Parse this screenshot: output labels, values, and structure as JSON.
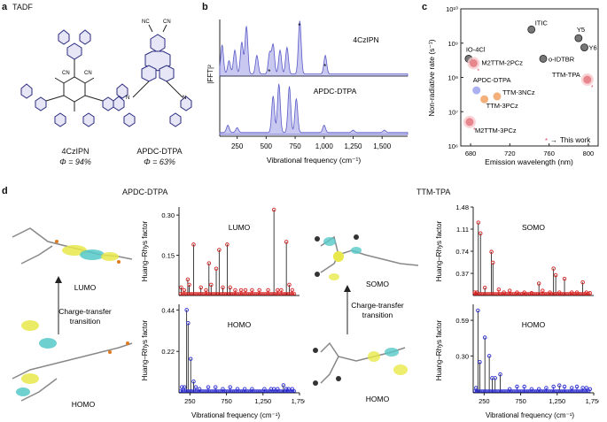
{
  "panels": {
    "a": {
      "label": "a",
      "header": "TADF",
      "molecules": [
        {
          "name": "4CzIPN",
          "phi": "Φ = 94%"
        },
        {
          "name": "APDC-DTPA",
          "phi": "Φ = 63%"
        }
      ]
    },
    "b": {
      "label": "b",
      "ylabel": "|FFT|²",
      "xlabel": "Vibrational frequency (cm⁻¹)",
      "xticks": [
        "250",
        "500",
        "750",
        "1,000",
        "1,250",
        "1,500"
      ],
      "trace_top": "4CzIPN",
      "trace_bottom": "APDC-DTPA",
      "star": "*"
    },
    "c": {
      "label": "c",
      "ylabel": "Non-radiative rate (s⁻¹)",
      "xlabel": "Emission wavelength (nm)",
      "yticks": [
        "10¹⁰",
        "10⁹",
        "10⁸",
        "10⁷",
        "10⁶"
      ],
      "xticks": [
        "680",
        "720",
        "760",
        "800"
      ],
      "legend": "This work",
      "legend_star": "*",
      "legend_arrow": "→"
    },
    "d": {
      "label": "d",
      "left_title": "APDC-DTPA",
      "right_title": "TTM-TPA",
      "left_top_orbital": "LUMO",
      "left_bottom_orbital": "HOMO",
      "left_transition": "Charge-transfer\ntransition",
      "right_top_orbital": "SOMO",
      "right_bottom_orbital": "HOMO",
      "right_transition": "Charge-transfer\ntransition",
      "plot_ylabel": "Huang–Rhys factor",
      "plot_xlabel": "Vibrational frequency (cm⁻¹)",
      "plot_xticks": [
        "250",
        "750",
        "1,250",
        "1,750"
      ],
      "plots": {
        "apdc_lumo": {
          "label": "LUMO",
          "yticks": [
            "0.15",
            "0.30"
          ]
        },
        "apdc_homo": {
          "label": "HOMO",
          "yticks": [
            "0.22",
            "0.44"
          ]
        },
        "ttm_somo": {
          "label": "SOMO",
          "yticks": [
            "0.37",
            "0.74",
            "1.11",
            "1.48"
          ]
        },
        "ttm_homo": {
          "label": "HOMO",
          "yticks": [
            "0.30",
            "0.59"
          ]
        }
      }
    }
  },
  "colors": {
    "fft_fill": "#c8c8f0",
    "fft_line": "#5a5ac8",
    "lumo_red": "#d42020",
    "homo_blue": "#2b2bd0",
    "highlight_pink": "#e8868e",
    "grey_point": "#777777",
    "orange_point": "#f4b07a",
    "lavender_point": "#aab0f0"
  },
  "chart_data": [
    {
      "type": "scatter",
      "id": "panel-c",
      "xlabel": "Emission wavelength (nm)",
      "ylabel": "Non-radiative rate (s⁻¹)",
      "xlim": [
        670,
        810
      ],
      "ylim_log10": [
        6,
        10
      ],
      "xticks": [
        680,
        720,
        760,
        800
      ],
      "points": [
        {
          "label": "ITIC",
          "x": 742,
          "y": 2500000000.0,
          "kind": "grey",
          "star": false
        },
        {
          "label": "IO-4Cl",
          "x": 678,
          "y": 350000000.0,
          "kind": "grey",
          "star": false
        },
        {
          "label": "o-IDTBR",
          "x": 754,
          "y": 350000000.0,
          "kind": "grey",
          "star": false
        },
        {
          "label": "Y5",
          "x": 790,
          "y": 1400000000.0,
          "kind": "grey",
          "star": false
        },
        {
          "label": "Y6",
          "x": 796,
          "y": 750000000.0,
          "kind": "grey",
          "star": false
        },
        {
          "label": "M2TTM-2PCz",
          "x": 683,
          "y": 260000000.0,
          "kind": "pink",
          "star": true
        },
        {
          "label": "TTM-TPA",
          "x": 799,
          "y": 86000000.0,
          "kind": "pink",
          "star": true
        },
        {
          "label": "APDC-DTPA",
          "x": 686,
          "y": 42000000.0,
          "kind": "lavender",
          "star": false
        },
        {
          "label": "TTM-3NCz",
          "x": 707,
          "y": 28000000.0,
          "kind": "orange",
          "star": false
        },
        {
          "label": "TTM-3PCz",
          "x": 694,
          "y": 23000000.0,
          "kind": "orange",
          "star": false
        },
        {
          "label": "M2TTM-3PCz",
          "x": 679,
          "y": 5000000.0,
          "kind": "pink",
          "star": true
        }
      ]
    },
    {
      "type": "area",
      "id": "panel-b",
      "xlabel": "Vibrational frequency (cm⁻¹)",
      "ylabel": "|FFT|²",
      "xlim": [
        100,
        1720
      ],
      "series": [
        {
          "name": "4CzIPN",
          "peaks": [
            [
              120,
              0.55
            ],
            [
              180,
              0.25
            ],
            [
              230,
              0.45
            ],
            [
              290,
              0.6
            ],
            [
              330,
              0.9
            ],
            [
              420,
              0.35
            ],
            [
              530,
              0.4
            ],
            [
              560,
              0.55
            ],
            [
              620,
              0.45
            ],
            [
              680,
              0.5
            ],
            [
              790,
              1.0
            ],
            [
              1010,
              0.35
            ]
          ]
        },
        {
          "name": "APDC-DTPA",
          "peaks": [
            [
              170,
              0.15
            ],
            [
              250,
              0.1
            ],
            [
              560,
              0.75
            ],
            [
              610,
              1.0
            ],
            [
              700,
              0.95
            ],
            [
              760,
              0.7
            ],
            [
              1000,
              0.15
            ],
            [
              1250,
              0.05
            ],
            [
              1520,
              0.05
            ]
          ]
        }
      ]
    },
    {
      "type": "scatter",
      "id": "d-apdc-lumo",
      "name": "LUMO",
      "ylabel": "Huang–Rhys factor",
      "xlabel": "Vibrational frequency (cm⁻¹)",
      "xlim": [
        100,
        1750
      ],
      "ylim": [
        0,
        0.33
      ],
      "sticks": [
        [
          130,
          0.03
        ],
        [
          170,
          0.02
        ],
        [
          220,
          0.06
        ],
        [
          240,
          0.04
        ],
        [
          300,
          0.19
        ],
        [
          400,
          0.03
        ],
        [
          470,
          0.02
        ],
        [
          510,
          0.12
        ],
        [
          540,
          0.04
        ],
        [
          610,
          0.1
        ],
        [
          650,
          0.17
        ],
        [
          700,
          0.03
        ],
        [
          760,
          0.19
        ],
        [
          800,
          0.03
        ],
        [
          870,
          0.02
        ],
        [
          950,
          0.02
        ],
        [
          1010,
          0.02
        ],
        [
          1100,
          0.02
        ],
        [
          1200,
          0.02
        ],
        [
          1320,
          0.02
        ],
        [
          1400,
          0.32
        ],
        [
          1450,
          0.02
        ],
        [
          1500,
          0.02
        ],
        [
          1570,
          0.2
        ],
        [
          1610,
          0.04
        ],
        [
          1650,
          0.02
        ]
      ]
    },
    {
      "type": "scatter",
      "id": "d-apdc-homo",
      "name": "HOMO",
      "ylabel": "Huang–Rhys factor",
      "xlabel": "Vibrational frequency (cm⁻¹)",
      "xlim": [
        100,
        1750
      ],
      "ylim": [
        0,
        0.47
      ],
      "sticks": [
        [
          140,
          0.03
        ],
        [
          175,
          0.03
        ],
        [
          205,
          0.44
        ],
        [
          225,
          0.37
        ],
        [
          260,
          0.18
        ],
        [
          300,
          0.06
        ],
        [
          330,
          0.03
        ],
        [
          380,
          0.02
        ],
        [
          500,
          0.03
        ],
        [
          600,
          0.03
        ],
        [
          700,
          0.02
        ],
        [
          800,
          0.03
        ],
        [
          900,
          0.02
        ],
        [
          1000,
          0.02
        ],
        [
          1100,
          0.02
        ],
        [
          1270,
          0.02
        ],
        [
          1360,
          0.02
        ],
        [
          1400,
          0.02
        ],
        [
          1450,
          0.02
        ],
        [
          1530,
          0.04
        ],
        [
          1570,
          0.02
        ],
        [
          1600,
          0.02
        ],
        [
          1650,
          0.02
        ]
      ]
    },
    {
      "type": "scatter",
      "id": "d-ttm-somo",
      "name": "SOMO",
      "ylabel": "Huang–Rhys factor",
      "xlabel": "Vibrational frequency (cm⁻¹)",
      "xlim": [
        100,
        1750
      ],
      "ylim": [
        0,
        1.48
      ],
      "sticks": [
        [
          120,
          0.05
        ],
        [
          150,
          0.05
        ],
        [
          170,
          1.22
        ],
        [
          200,
          1.04
        ],
        [
          260,
          0.13
        ],
        [
          350,
          0.73
        ],
        [
          370,
          0.55
        ],
        [
          450,
          0.1
        ],
        [
          520,
          0.05
        ],
        [
          600,
          0.08
        ],
        [
          700,
          0.05
        ],
        [
          800,
          0.05
        ],
        [
          900,
          0.04
        ],
        [
          1000,
          0.2
        ],
        [
          1050,
          0.08
        ],
        [
          1150,
          0.05
        ],
        [
          1200,
          0.45
        ],
        [
          1230,
          0.34
        ],
        [
          1280,
          0.05
        ],
        [
          1350,
          0.28
        ],
        [
          1450,
          0.05
        ],
        [
          1520,
          0.05
        ],
        [
          1600,
          0.22
        ],
        [
          1650,
          0.05
        ],
        [
          1700,
          0.04
        ]
      ]
    },
    {
      "type": "scatter",
      "id": "d-ttm-homo",
      "name": "HOMO",
      "ylabel": "Huang–Rhys factor",
      "xlabel": "Vibrational frequency (cm⁻¹)",
      "xlim": [
        100,
        1750
      ],
      "ylim": [
        0,
        0.72
      ],
      "sticks": [
        [
          140,
          0.04
        ],
        [
          165,
          0.67
        ],
        [
          190,
          0.25
        ],
        [
          260,
          0.45
        ],
        [
          320,
          0.3
        ],
        [
          360,
          0.12
        ],
        [
          400,
          0.12
        ],
        [
          470,
          0.15
        ],
        [
          600,
          0.03
        ],
        [
          700,
          0.05
        ],
        [
          800,
          0.05
        ],
        [
          900,
          0.03
        ],
        [
          1000,
          0.03
        ],
        [
          1100,
          0.04
        ],
        [
          1200,
          0.05
        ],
        [
          1280,
          0.06
        ],
        [
          1350,
          0.05
        ],
        [
          1450,
          0.04
        ],
        [
          1520,
          0.05
        ],
        [
          1600,
          0.04
        ],
        [
          1650,
          0.04
        ],
        [
          1700,
          0.03
        ]
      ]
    }
  ]
}
